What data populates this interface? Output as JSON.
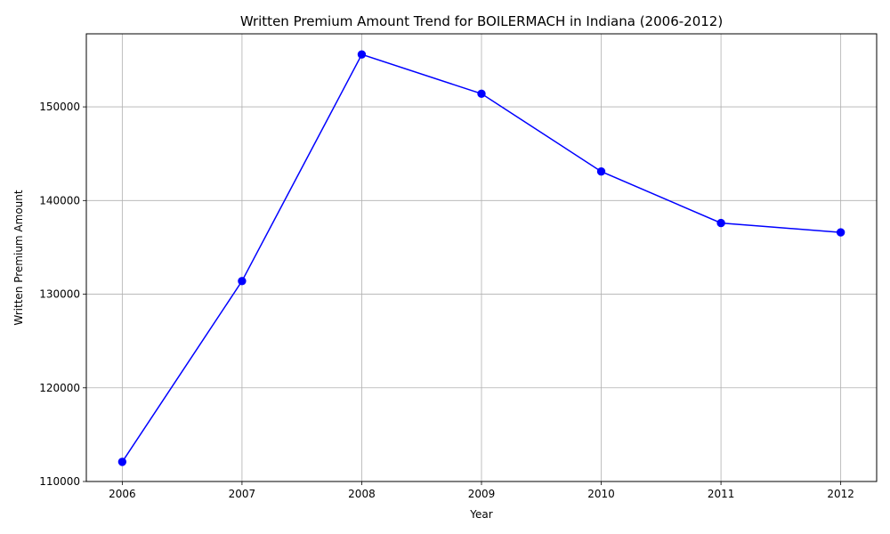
{
  "chart_data": {
    "type": "line",
    "title": "Written Premium Amount Trend for BOILERMACH in Indiana (2006-2012)",
    "xlabel": "Year",
    "ylabel": "Written Premium Amount",
    "x": [
      2006,
      2007,
      2008,
      2009,
      2010,
      2011,
      2012
    ],
    "x_tick_labels": [
      "2006",
      "2007",
      "2008",
      "2009",
      "2010",
      "2011",
      "2012"
    ],
    "series": [
      {
        "values": [
          112100,
          131400,
          155600,
          151400,
          143100,
          137600,
          136600
        ]
      }
    ],
    "xlim": [
      2005.7,
      2012.3
    ],
    "ylim": [
      110000,
      157800
    ],
    "yticks": [
      110000,
      120000,
      130000,
      140000,
      150000
    ],
    "y_tick_labels": [
      "110000",
      "120000",
      "130000",
      "140000",
      "150000"
    ],
    "grid": true,
    "line_color": "#0000ff",
    "marker_color": "#0000ff",
    "grid_color": "#b0b0b0"
  }
}
